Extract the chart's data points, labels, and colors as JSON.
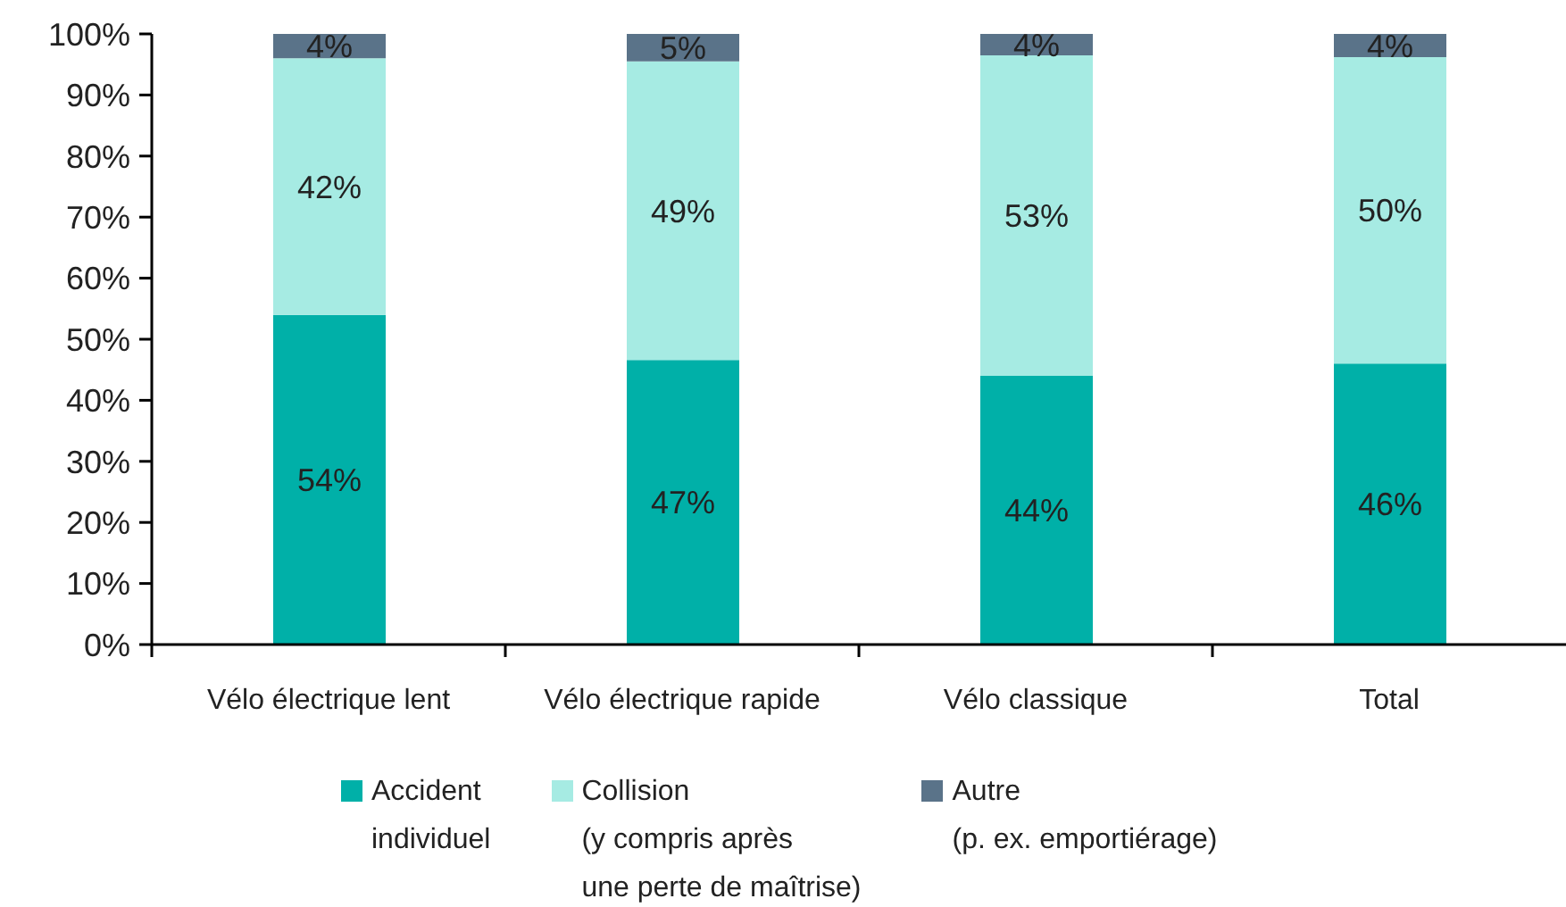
{
  "chart_data": {
    "type": "bar",
    "stacked": true,
    "categories": [
      "Vélo électrique lent",
      "Vélo électrique rapide",
      "Vélo classique",
      "Total"
    ],
    "series": [
      {
        "name": "Accident\nindividuel",
        "color": "#00b0a8",
        "values": [
          54,
          46.6,
          44,
          46
        ],
        "value_labels": [
          "54%",
          "47%",
          "44%",
          "46%"
        ]
      },
      {
        "name": "Collision\n(y compris après\nune perte de maîtrise)",
        "color": "#a6ebe3",
        "values": [
          42,
          48.9,
          52.5,
          50.2
        ],
        "value_labels": [
          "42%",
          "49%",
          "53%",
          "50%"
        ]
      },
      {
        "name": "Autre\n(p. ex. emportiérage)",
        "color": "#5a7389",
        "values": [
          4,
          4.5,
          3.5,
          3.8
        ],
        "value_labels": [
          "4%",
          "5%",
          "4%",
          "4%"
        ]
      }
    ],
    "ylim": [
      0,
      100
    ],
    "yticks": [
      {
        "value": 0,
        "label": "0%"
      },
      {
        "value": 10,
        "label": "10%"
      },
      {
        "value": 20,
        "label": "20%"
      },
      {
        "value": 30,
        "label": "30%"
      },
      {
        "value": 40,
        "label": "40%"
      },
      {
        "value": 50,
        "label": "50%"
      },
      {
        "value": 60,
        "label": "60%"
      },
      {
        "value": 70,
        "label": "70%"
      },
      {
        "value": 80,
        "label": "80%"
      },
      {
        "value": 90,
        "label": "90%"
      },
      {
        "value": 100,
        "label": "100%"
      }
    ],
    "legend": "bottom"
  }
}
